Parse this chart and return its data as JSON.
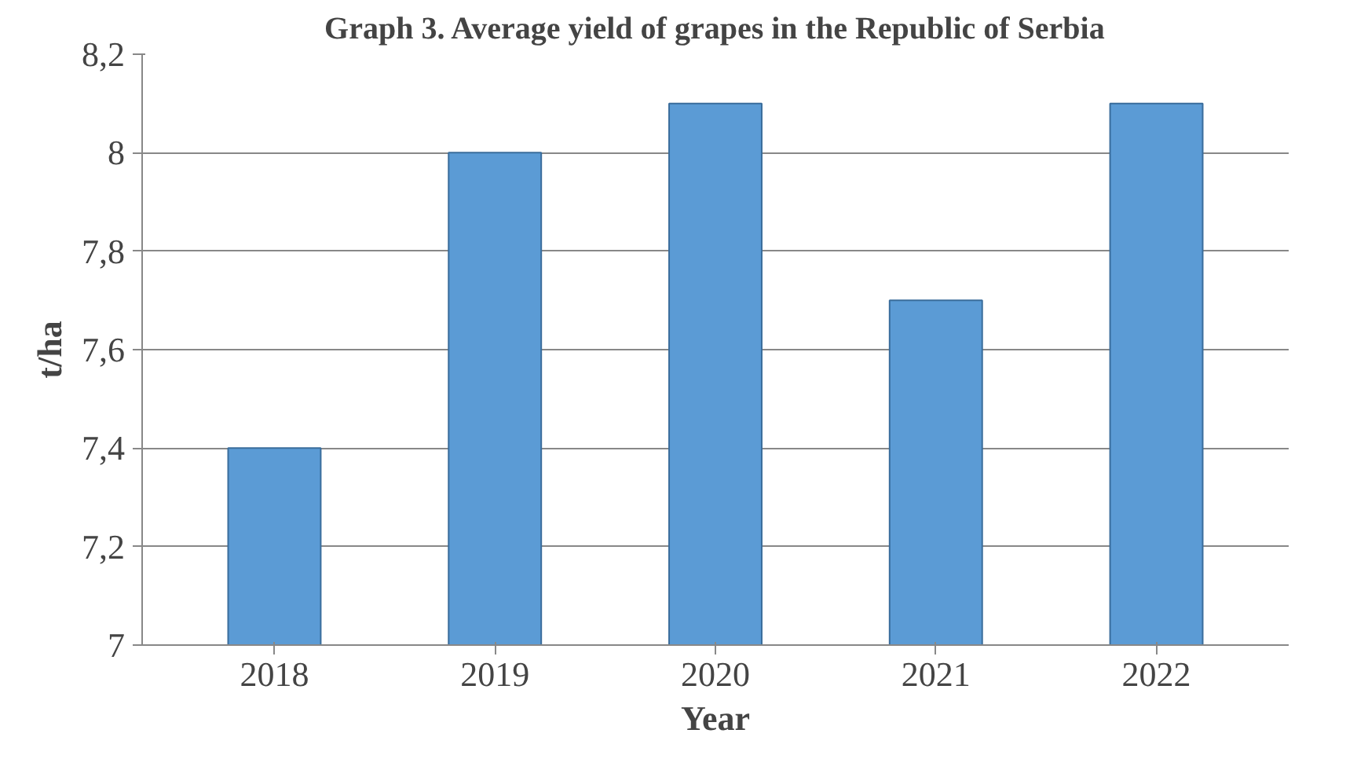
{
  "chart_data": {
    "type": "bar",
    "title": "Graph 3. Average yield of grapes in the Republic of Serbia",
    "xlabel": "Year",
    "ylabel": "t/ha",
    "categories": [
      "2018",
      "2019",
      "2020",
      "2021",
      "2022"
    ],
    "values": [
      7.4,
      8.0,
      8.1,
      7.7,
      8.1
    ],
    "color": "#5b9bd5",
    "ylim": [
      7,
      8.2
    ],
    "yticks": [
      7,
      {
        "value": 7.2,
        "label": "7,2"
      },
      {
        "value": 7.4,
        "label": "7,4"
      },
      {
        "value": 7.6,
        "label": "7,6"
      },
      {
        "value": 7.8,
        "label": "7,8"
      },
      8,
      {
        "value": 8.2,
        "label": "8,2"
      }
    ],
    "grid": "y"
  }
}
